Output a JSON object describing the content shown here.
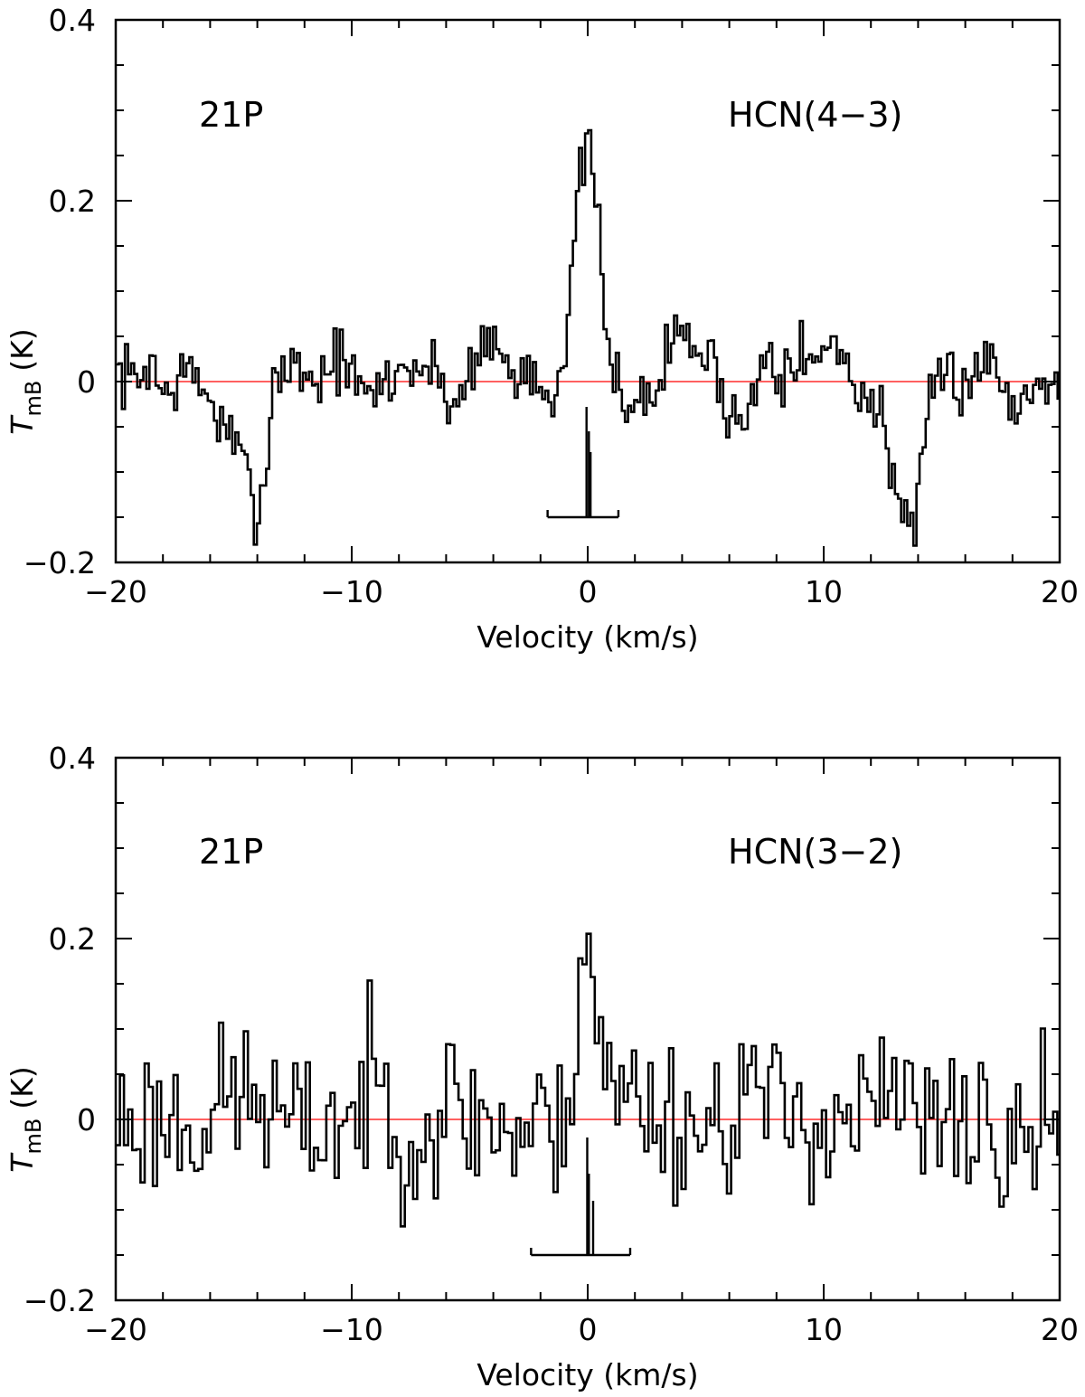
{
  "figure": {
    "panel_labels": [
      "top",
      "bottom"
    ]
  },
  "colors": {
    "spectrum": "#000000",
    "baseline": "#ff0000",
    "background": "#ffffff"
  },
  "chart_data": [
    {
      "type": "line",
      "style": "histogram-step",
      "annotation_left": "21P",
      "annotation_right": "HCN(4−3)",
      "xlabel": "Velocity (km/s)",
      "ylabel_main": "T",
      "ylabel_sub": "mB",
      "ylabel_unit": "(K)",
      "xlim": [
        -20,
        20
      ],
      "ylim": [
        -0.2,
        0.4
      ],
      "x_major_ticks": [
        -20,
        -10,
        0,
        10,
        20
      ],
      "x_tick_labels": [
        "−20",
        "−10",
        "0",
        "10",
        "20"
      ],
      "y_major_ticks": [
        -0.2,
        0,
        0.2,
        0.4
      ],
      "y_tick_labels": [
        "−0.2",
        "0",
        "0.2",
        "0.4"
      ],
      "baseline": 0,
      "channel_width_kms": 0.13,
      "control_points": [
        [
          -20,
          0.01
        ],
        [
          -19,
          0.0
        ],
        [
          -18.5,
          0.03
        ],
        [
          -18.0,
          -0.02
        ],
        [
          -17.5,
          0.0
        ],
        [
          -17.0,
          0.01
        ],
        [
          -16.5,
          0.0
        ],
        [
          -16.0,
          -0.02
        ],
        [
          -15.5,
          -0.05
        ],
        [
          -15.0,
          -0.07
        ],
        [
          -14.5,
          -0.1
        ],
        [
          -14.2,
          -0.13
        ],
        [
          -13.9,
          -0.14
        ],
        [
          -13.6,
          -0.09
        ],
        [
          -13.3,
          0.01
        ],
        [
          -12.5,
          0.02
        ],
        [
          -11.5,
          0.0
        ],
        [
          -10.5,
          0.03
        ],
        [
          -9.5,
          -0.02
        ],
        [
          -8.5,
          0.0
        ],
        [
          -7.5,
          0.02
        ],
        [
          -6.5,
          0.01
        ],
        [
          -5.5,
          -0.03
        ],
        [
          -5.0,
          0.02
        ],
        [
          -4.2,
          0.05
        ],
        [
          -3.0,
          0.0
        ],
        [
          -2.5,
          0.02
        ],
        [
          -1.8,
          -0.01
        ],
        [
          -1.3,
          0.0
        ],
        [
          -1.0,
          0.03
        ],
        [
          -0.7,
          0.1
        ],
        [
          -0.4,
          0.2
        ],
        [
          -0.2,
          0.25
        ],
        [
          0.0,
          0.26
        ],
        [
          0.2,
          0.25
        ],
        [
          0.4,
          0.18
        ],
        [
          0.7,
          0.07
        ],
        [
          1.0,
          0.01
        ],
        [
          1.5,
          -0.01
        ],
        [
          2.0,
          -0.02
        ],
        [
          2.5,
          -0.03
        ],
        [
          3.0,
          0.0
        ],
        [
          3.8,
          0.06
        ],
        [
          4.5,
          0.04
        ],
        [
          5.5,
          0.01
        ],
        [
          6.0,
          -0.03
        ],
        [
          6.6,
          -0.05
        ],
        [
          7.2,
          0.0
        ],
        [
          7.7,
          0.05
        ],
        [
          8.2,
          0.0
        ],
        [
          8.5,
          0.04
        ],
        [
          9.5,
          0.02
        ],
        [
          10.5,
          0.04
        ],
        [
          11.0,
          0.02
        ],
        [
          11.8,
          -0.02
        ],
        [
          12.5,
          -0.04
        ],
        [
          13.0,
          -0.1
        ],
        [
          13.4,
          -0.16
        ],
        [
          13.7,
          -0.17
        ],
        [
          14.1,
          -0.13
        ],
        [
          14.5,
          -0.03
        ],
        [
          15.0,
          0.01
        ],
        [
          16.0,
          0.0
        ],
        [
          16.8,
          0.03
        ],
        [
          17.5,
          0.0
        ],
        [
          18.2,
          -0.03
        ],
        [
          19.0,
          0.0
        ],
        [
          19.5,
          0.02
        ],
        [
          20,
          0.0
        ]
      ],
      "noise_amplitude_K": 0.028,
      "noise_seed": 7,
      "hyperfine_markers": {
        "span_kms": [
          -1.7,
          1.3
        ],
        "base_level_K": -0.15,
        "components": [
          {
            "v": -0.05,
            "top_K": -0.028
          },
          {
            "v": 0.05,
            "top_K": -0.055
          },
          {
            "v": 0.12,
            "top_K": -0.078
          }
        ]
      }
    },
    {
      "type": "line",
      "style": "histogram-step",
      "annotation_left": "21P",
      "annotation_right": "HCN(3−2)",
      "xlabel": "Velocity (km/s)",
      "ylabel_main": "T",
      "ylabel_sub": "mB",
      "ylabel_unit": "(K)",
      "xlim": [
        -20,
        20
      ],
      "ylim": [
        -0.2,
        0.4
      ],
      "x_major_ticks": [
        -20,
        -10,
        0,
        10,
        20
      ],
      "x_tick_labels": [
        "−20",
        "−10",
        "0",
        "10",
        "20"
      ],
      "y_major_ticks": [
        -0.2,
        0,
        0.2,
        0.4
      ],
      "y_tick_labels": [
        "−0.2",
        "0",
        "0.2",
        "0.4"
      ],
      "baseline": 0,
      "channel_width_kms": 0.175,
      "control_points": [
        [
          -20,
          0.0
        ],
        [
          -19,
          0.0
        ],
        [
          -18,
          0.0
        ],
        [
          -17,
          0.0
        ],
        [
          -16,
          0.0
        ],
        [
          -15,
          0.03
        ],
        [
          -14,
          0.02
        ],
        [
          -13,
          0.0
        ],
        [
          -12,
          -0.02
        ],
        [
          -11,
          0.0
        ],
        [
          -10,
          0.0
        ],
        [
          -9,
          0.04
        ],
        [
          -8,
          0.0
        ],
        [
          -7,
          -0.02
        ],
        [
          -6,
          0.02
        ],
        [
          -5,
          0.0
        ],
        [
          -4,
          0.0
        ],
        [
          -3,
          -0.02
        ],
        [
          -2,
          0.0
        ],
        [
          -1.2,
          -0.03
        ],
        [
          -0.6,
          0.08
        ],
        [
          -0.3,
          0.17
        ],
        [
          0.0,
          0.22
        ],
        [
          0.3,
          0.14
        ],
        [
          0.7,
          0.05
        ],
        [
          1.2,
          0.02
        ],
        [
          2,
          0.03
        ],
        [
          3,
          0.01
        ],
        [
          4,
          0.0
        ],
        [
          5,
          -0.01
        ],
        [
          6,
          0.01
        ],
        [
          7,
          0.04
        ],
        [
          8,
          0.0
        ],
        [
          9,
          0.01
        ],
        [
          10,
          0.0
        ],
        [
          11,
          0.0
        ],
        [
          12,
          0.01
        ],
        [
          13,
          0.02
        ],
        [
          14,
          0.0
        ],
        [
          15,
          -0.02
        ],
        [
          16,
          0.0
        ],
        [
          17,
          0.01
        ],
        [
          17.8,
          -0.08
        ],
        [
          18.3,
          -0.03
        ],
        [
          19,
          0.0
        ],
        [
          20,
          -0.03
        ]
      ],
      "noise_amplitude_K": 0.068,
      "noise_seed": 23,
      "hyperfine_markers": {
        "span_kms": [
          -2.4,
          1.8
        ],
        "base_level_K": -0.15,
        "components": [
          {
            "v": -0.02,
            "top_K": -0.02
          },
          {
            "v": 0.05,
            "top_K": -0.06
          },
          {
            "v": 0.23,
            "top_K": -0.09
          }
        ]
      }
    }
  ]
}
